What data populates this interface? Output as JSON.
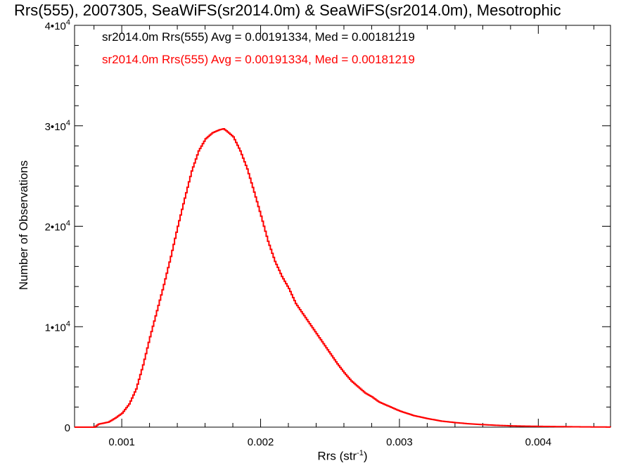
{
  "chart_data": {
    "type": "line",
    "title": "Rrs(555), 2007305, SeaWiFS(sr2014.0m) & SeaWiFS(sr2014.0m), Mesotrophic",
    "annotations": [
      {
        "text": "sr2014.0m Rrs(555) Avg = 0.00191334, Med = 0.00181219",
        "color": "#000000"
      },
      {
        "text": "sr2014.0m Rrs(555) Avg = 0.00191334, Med = 0.00181219",
        "color": "#ff0000"
      }
    ],
    "xlabel": "Rrs (str",
    "xlabel_sup": "-1",
    "xlabel_suffix": ")",
    "ylabel": "Number of Observations",
    "xlim": [
      0.00066,
      0.00452
    ],
    "ylim": [
      0,
      40000
    ],
    "x_ticks": [
      {
        "value": 0.001,
        "label": "0.001"
      },
      {
        "value": 0.002,
        "label": "0.002"
      },
      {
        "value": 0.003,
        "label": "0.003"
      },
      {
        "value": 0.004,
        "label": "0.004"
      }
    ],
    "y_ticks": [
      {
        "value": 0,
        "label": "0"
      },
      {
        "value": 10000,
        "label": "1•10",
        "sup": "4"
      },
      {
        "value": 20000,
        "label": "2•10",
        "sup": "4"
      },
      {
        "value": 30000,
        "label": "3•10",
        "sup": "4"
      },
      {
        "value": 40000,
        "label": "4•10",
        "sup": "4"
      }
    ],
    "series": [
      {
        "color": "#ff0000",
        "step": true,
        "points": [
          [
            0.00066,
            0
          ],
          [
            0.0008,
            0
          ],
          [
            0.00083,
            300
          ],
          [
            0.0009,
            500
          ],
          [
            0.00095,
            900
          ],
          [
            0.001,
            1400
          ],
          [
            0.00105,
            2300
          ],
          [
            0.0011,
            3800
          ],
          [
            0.00115,
            6200
          ],
          [
            0.0012,
            9000
          ],
          [
            0.00125,
            11600
          ],
          [
            0.0013,
            14200
          ],
          [
            0.00135,
            17000
          ],
          [
            0.0014,
            20000
          ],
          [
            0.00145,
            22800
          ],
          [
            0.0015,
            25500
          ],
          [
            0.00155,
            27500
          ],
          [
            0.0016,
            28700
          ],
          [
            0.00165,
            29300
          ],
          [
            0.0017,
            29600
          ],
          [
            0.00173,
            29700
          ],
          [
            0.00175,
            29500
          ],
          [
            0.0018,
            28900
          ],
          [
            0.00185,
            27500
          ],
          [
            0.0019,
            25700
          ],
          [
            0.00195,
            23400
          ],
          [
            0.002,
            21000
          ],
          [
            0.00205,
            18500
          ],
          [
            0.0021,
            16500
          ],
          [
            0.00215,
            15000
          ],
          [
            0.0022,
            13800
          ],
          [
            0.00225,
            12300
          ],
          [
            0.0023,
            11300
          ],
          [
            0.00235,
            10300
          ],
          [
            0.0024,
            9300
          ],
          [
            0.00245,
            8300
          ],
          [
            0.0025,
            7300
          ],
          [
            0.00255,
            6300
          ],
          [
            0.0026,
            5400
          ],
          [
            0.00265,
            4600
          ],
          [
            0.0027,
            4000
          ],
          [
            0.00275,
            3400
          ],
          [
            0.0028,
            3000
          ],
          [
            0.00285,
            2500
          ],
          [
            0.0029,
            2200
          ],
          [
            0.00295,
            1900
          ],
          [
            0.003,
            1600
          ],
          [
            0.0031,
            1150
          ],
          [
            0.0032,
            850
          ],
          [
            0.0033,
            600
          ],
          [
            0.0034,
            450
          ],
          [
            0.0035,
            330
          ],
          [
            0.0036,
            250
          ],
          [
            0.0037,
            180
          ],
          [
            0.0038,
            130
          ],
          [
            0.0039,
            100
          ],
          [
            0.004,
            80
          ],
          [
            0.0041,
            60
          ],
          [
            0.0042,
            45
          ],
          [
            0.0043,
            30
          ],
          [
            0.0044,
            20
          ],
          [
            0.00452,
            10
          ]
        ]
      }
    ],
    "grid": false
  }
}
